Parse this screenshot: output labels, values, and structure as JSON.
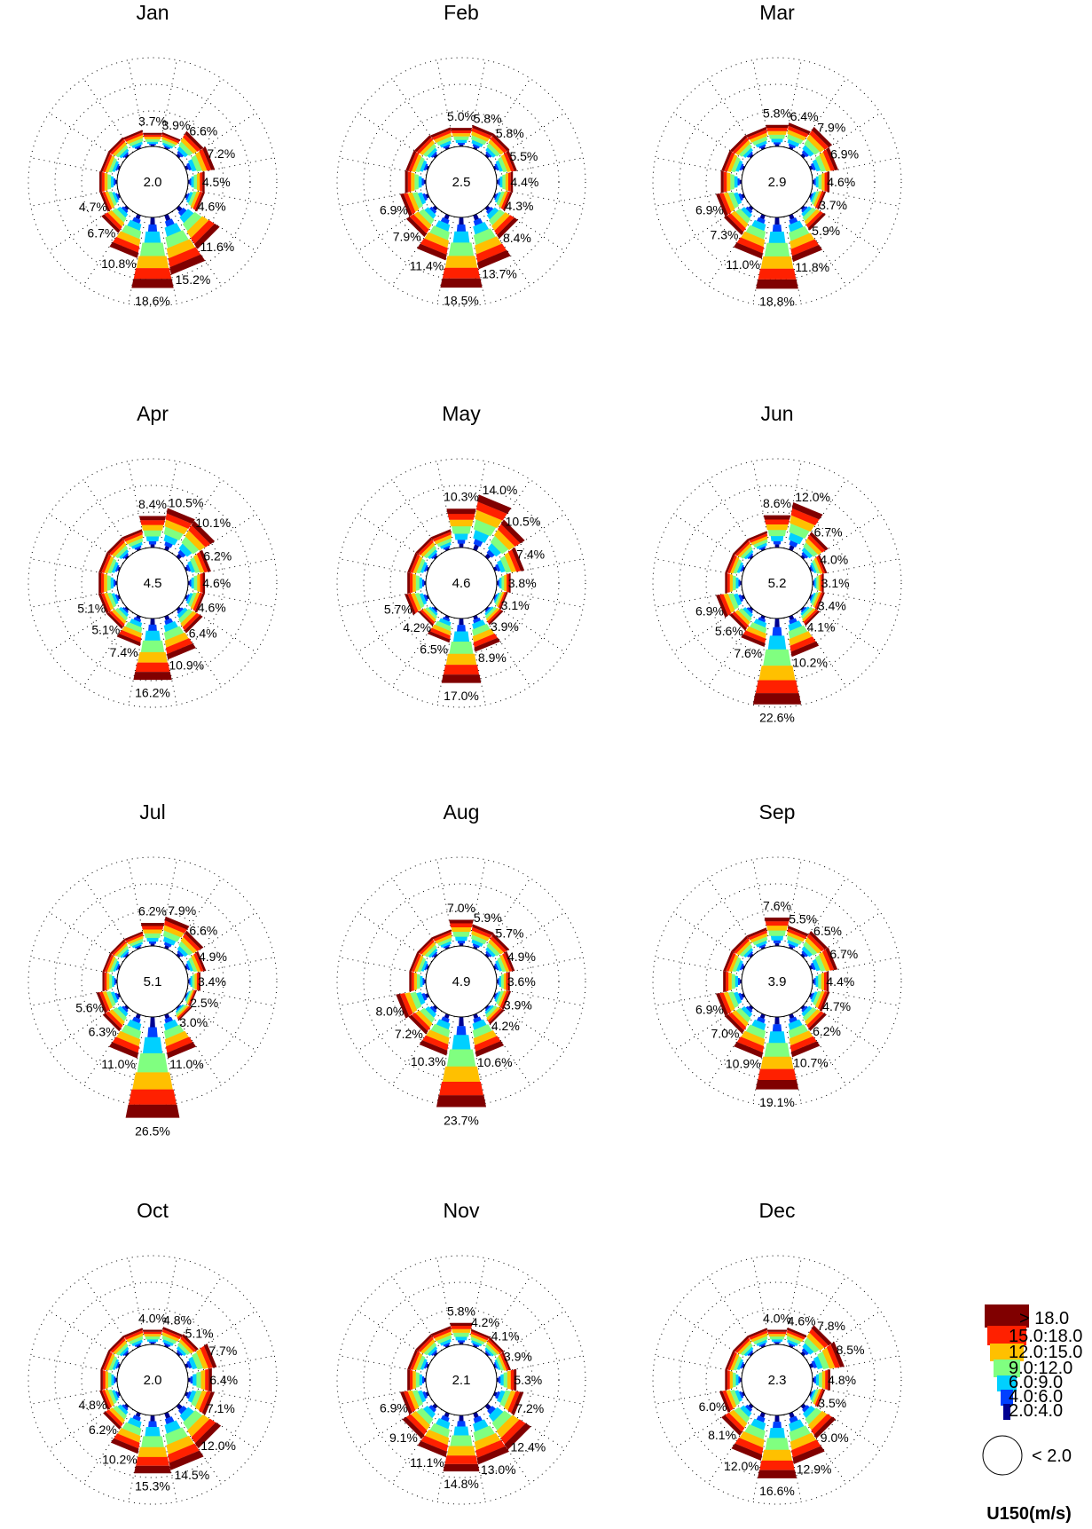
{
  "chart_data": {
    "type": "windrose",
    "sectors": 16,
    "direction_order": "clockwise from north",
    "grid": "dotted concentric circles and radial spokes",
    "legend": {
      "title": "U150(m/s)",
      "placement": "bottom-right",
      "bins": [
        {
          "label": "> 18.0",
          "color": "#800000"
        },
        {
          "label": "15.0:18.0",
          "color": "#ff2000"
        },
        {
          "label": "12.0:15.0",
          "color": "#ffc000"
        },
        {
          "label": "9.0:12.0",
          "color": "#80ff80"
        },
        {
          "label": "6.0:9.0",
          "color": "#00d0ff"
        },
        {
          "label": "4.0:6.0",
          "color": "#0040ff"
        },
        {
          "label": "2.0:4.0",
          "color": "#000090"
        },
        {
          "label": "< 2.0",
          "color": "#ffffff"
        }
      ]
    },
    "panels": [
      {
        "title": "Jan",
        "calm": "2.0",
        "values": [
          3.7,
          3.9,
          6.6,
          7.2,
          4.5,
          4.6,
          11.6,
          15.2,
          18.6,
          10.8,
          6.7,
          4.7,
          4.8,
          4.6,
          4.7,
          4.5
        ],
        "labels": [
          "3.7%",
          "3.9%",
          "6.6%",
          "7.2%",
          "4.5%",
          "4.6%",
          "11.6%",
          "15.2%",
          "18.6%",
          "10.8%",
          "6.7%",
          "4.7%",
          "",
          "",
          "",
          ""
        ]
      },
      {
        "title": "Feb",
        "calm": "2.5",
        "values": [
          5.0,
          5.8,
          5.8,
          5.5,
          4.4,
          4.3,
          8.4,
          13.7,
          18.5,
          11.4,
          7.9,
          6.9,
          5.6,
          5.5,
          5.4,
          5.2
        ],
        "labels": [
          "5.0%",
          "5.8%",
          "5.8%",
          "5.5%",
          "4.4%",
          "4.3%",
          "8.4%",
          "13.7%",
          "18.5%",
          "11.4%",
          "7.9%",
          "6.9%",
          "",
          "",
          "",
          ""
        ]
      },
      {
        "title": "Mar",
        "calm": "2.9",
        "values": [
          5.8,
          6.4,
          7.9,
          6.9,
          4.6,
          3.7,
          5.9,
          11.8,
          18.8,
          11.0,
          7.3,
          6.9,
          5.6,
          5.5,
          5.4,
          5.3
        ],
        "labels": [
          "5.8%",
          "6.4%",
          "7.9%",
          "6.9%",
          "4.6%",
          "3.7%",
          "5.9%",
          "11.8%",
          "18.8%",
          "11.0%",
          "7.3%",
          "6.9%",
          "",
          "",
          "",
          ""
        ]
      },
      {
        "title": "Apr",
        "calm": "4.5",
        "values": [
          8.4,
          10.5,
          10.1,
          6.2,
          4.6,
          4.6,
          6.4,
          10.9,
          16.2,
          7.4,
          5.1,
          5.1,
          5.0,
          5.0,
          5.0,
          5.0
        ],
        "labels": [
          "8.4%",
          "10.5%",
          "10.1%",
          "6.2%",
          "4.6%",
          "4.6%",
          "6.4%",
          "10.9%",
          "16.2%",
          "7.4%",
          "5.1%",
          "5.1%",
          "",
          "",
          "",
          ""
        ]
      },
      {
        "title": "May",
        "calm": "4.6",
        "values": [
          10.3,
          14.0,
          10.5,
          7.4,
          3.8,
          3.1,
          3.9,
          8.9,
          17.0,
          6.5,
          4.2,
          5.7,
          5.0,
          5.0,
          5.0,
          5.0
        ],
        "labels": [
          "10.3%",
          "14.0%",
          "10.5%",
          "7.4%",
          "3.8%",
          "3.1%",
          "3.9%",
          "8.9%",
          "17.0%",
          "6.5%",
          "4.2%",
          "5.7%",
          "",
          "",
          "",
          ""
        ]
      },
      {
        "title": "Jun",
        "calm": "5.2",
        "values": [
          8.6,
          12.0,
          6.7,
          4.0,
          3.1,
          3.4,
          4.1,
          10.2,
          22.6,
          7.6,
          5.6,
          6.9,
          4.5,
          4.5,
          4.5,
          4.5
        ],
        "labels": [
          "8.6%",
          "12.0%",
          "6.7%",
          "4.0%",
          "3.1%",
          "3.4%",
          "4.1%",
          "10.2%",
          "22.6%",
          "7.6%",
          "5.6%",
          "6.9%",
          "",
          "",
          "",
          ""
        ]
      },
      {
        "title": "Jul",
        "calm": "5.1",
        "values": [
          6.2,
          7.9,
          6.6,
          4.9,
          3.4,
          2.5,
          3.0,
          11.0,
          26.5,
          11.0,
          6.3,
          5.6,
          4.0,
          4.0,
          4.0,
          4.0
        ],
        "labels": [
          "6.2%",
          "7.9%",
          "6.6%",
          "4.9%",
          "3.4%",
          "2.5%",
          "3.0%",
          "11.0%",
          "26.5%",
          "11.0%",
          "6.3%",
          "5.6%",
          "",
          "",
          "",
          ""
        ]
      },
      {
        "title": "Aug",
        "calm": "4.9",
        "values": [
          7.0,
          5.9,
          5.7,
          4.9,
          3.6,
          3.9,
          4.2,
          10.6,
          23.7,
          10.3,
          7.2,
          8.0,
          4.5,
          4.5,
          4.5,
          4.5
        ],
        "labels": [
          "7.0%",
          "5.9%",
          "5.7%",
          "4.9%",
          "3.6%",
          "3.9%",
          "4.2%",
          "10.6%",
          "23.7%",
          "10.3%",
          "7.2%",
          "8.0%",
          "",
          "",
          "",
          ""
        ]
      },
      {
        "title": "Sep",
        "calm": "3.9",
        "values": [
          7.6,
          5.5,
          6.5,
          6.7,
          4.4,
          4.7,
          6.2,
          10.7,
          19.1,
          10.9,
          7.0,
          6.9,
          5.0,
          5.0,
          5.0,
          5.0
        ],
        "labels": [
          "7.6%",
          "5.5%",
          "6.5%",
          "6.7%",
          "4.4%",
          "4.7%",
          "6.2%",
          "10.7%",
          "19.1%",
          "10.9%",
          "7.0%",
          "6.9%",
          "",
          "",
          "",
          ""
        ]
      },
      {
        "title": "Oct",
        "calm": "2.0",
        "values": [
          4.0,
          4.8,
          5.1,
          7.7,
          6.4,
          7.1,
          12.0,
          14.5,
          15.3,
          10.2,
          6.2,
          4.8,
          4.5,
          4.5,
          4.5,
          4.5
        ],
        "labels": [
          "4.0%",
          "4.8%",
          "5.1%",
          "7.7%",
          "6.4%",
          "7.1%",
          "12.0%",
          "14.5%",
          "15.3%",
          "10.2%",
          "6.2%",
          "4.8%",
          "",
          "",
          "",
          ""
        ]
      },
      {
        "title": "Nov",
        "calm": "2.1",
        "values": [
          5.8,
          4.2,
          4.1,
          3.9,
          5.3,
          7.2,
          12.4,
          13.0,
          14.8,
          11.1,
          9.1,
          6.9,
          5.0,
          5.0,
          5.0,
          5.0
        ],
        "labels": [
          "5.8%",
          "4.2%",
          "4.1%",
          "3.9%",
          "5.3%",
          "7.2%",
          "12.4%",
          "13.0%",
          "14.8%",
          "11.1%",
          "9.1%",
          "6.9%",
          "",
          "",
          "",
          ""
        ]
      },
      {
        "title": "Dec",
        "calm": "2.3",
        "values": [
          4.0,
          4.6,
          7.8,
          8.5,
          4.8,
          3.5,
          9.0,
          12.9,
          16.6,
          12.0,
          8.1,
          6.0,
          4.5,
          4.5,
          4.5,
          4.5
        ],
        "labels": [
          "4.0%",
          "4.6%",
          "7.8%",
          "8.5%",
          "4.8%",
          "3.5%",
          "9.0%",
          "12.9%",
          "16.6%",
          "12.0%",
          "8.1%",
          "6.0%",
          "",
          "",
          "",
          ""
        ]
      }
    ]
  }
}
